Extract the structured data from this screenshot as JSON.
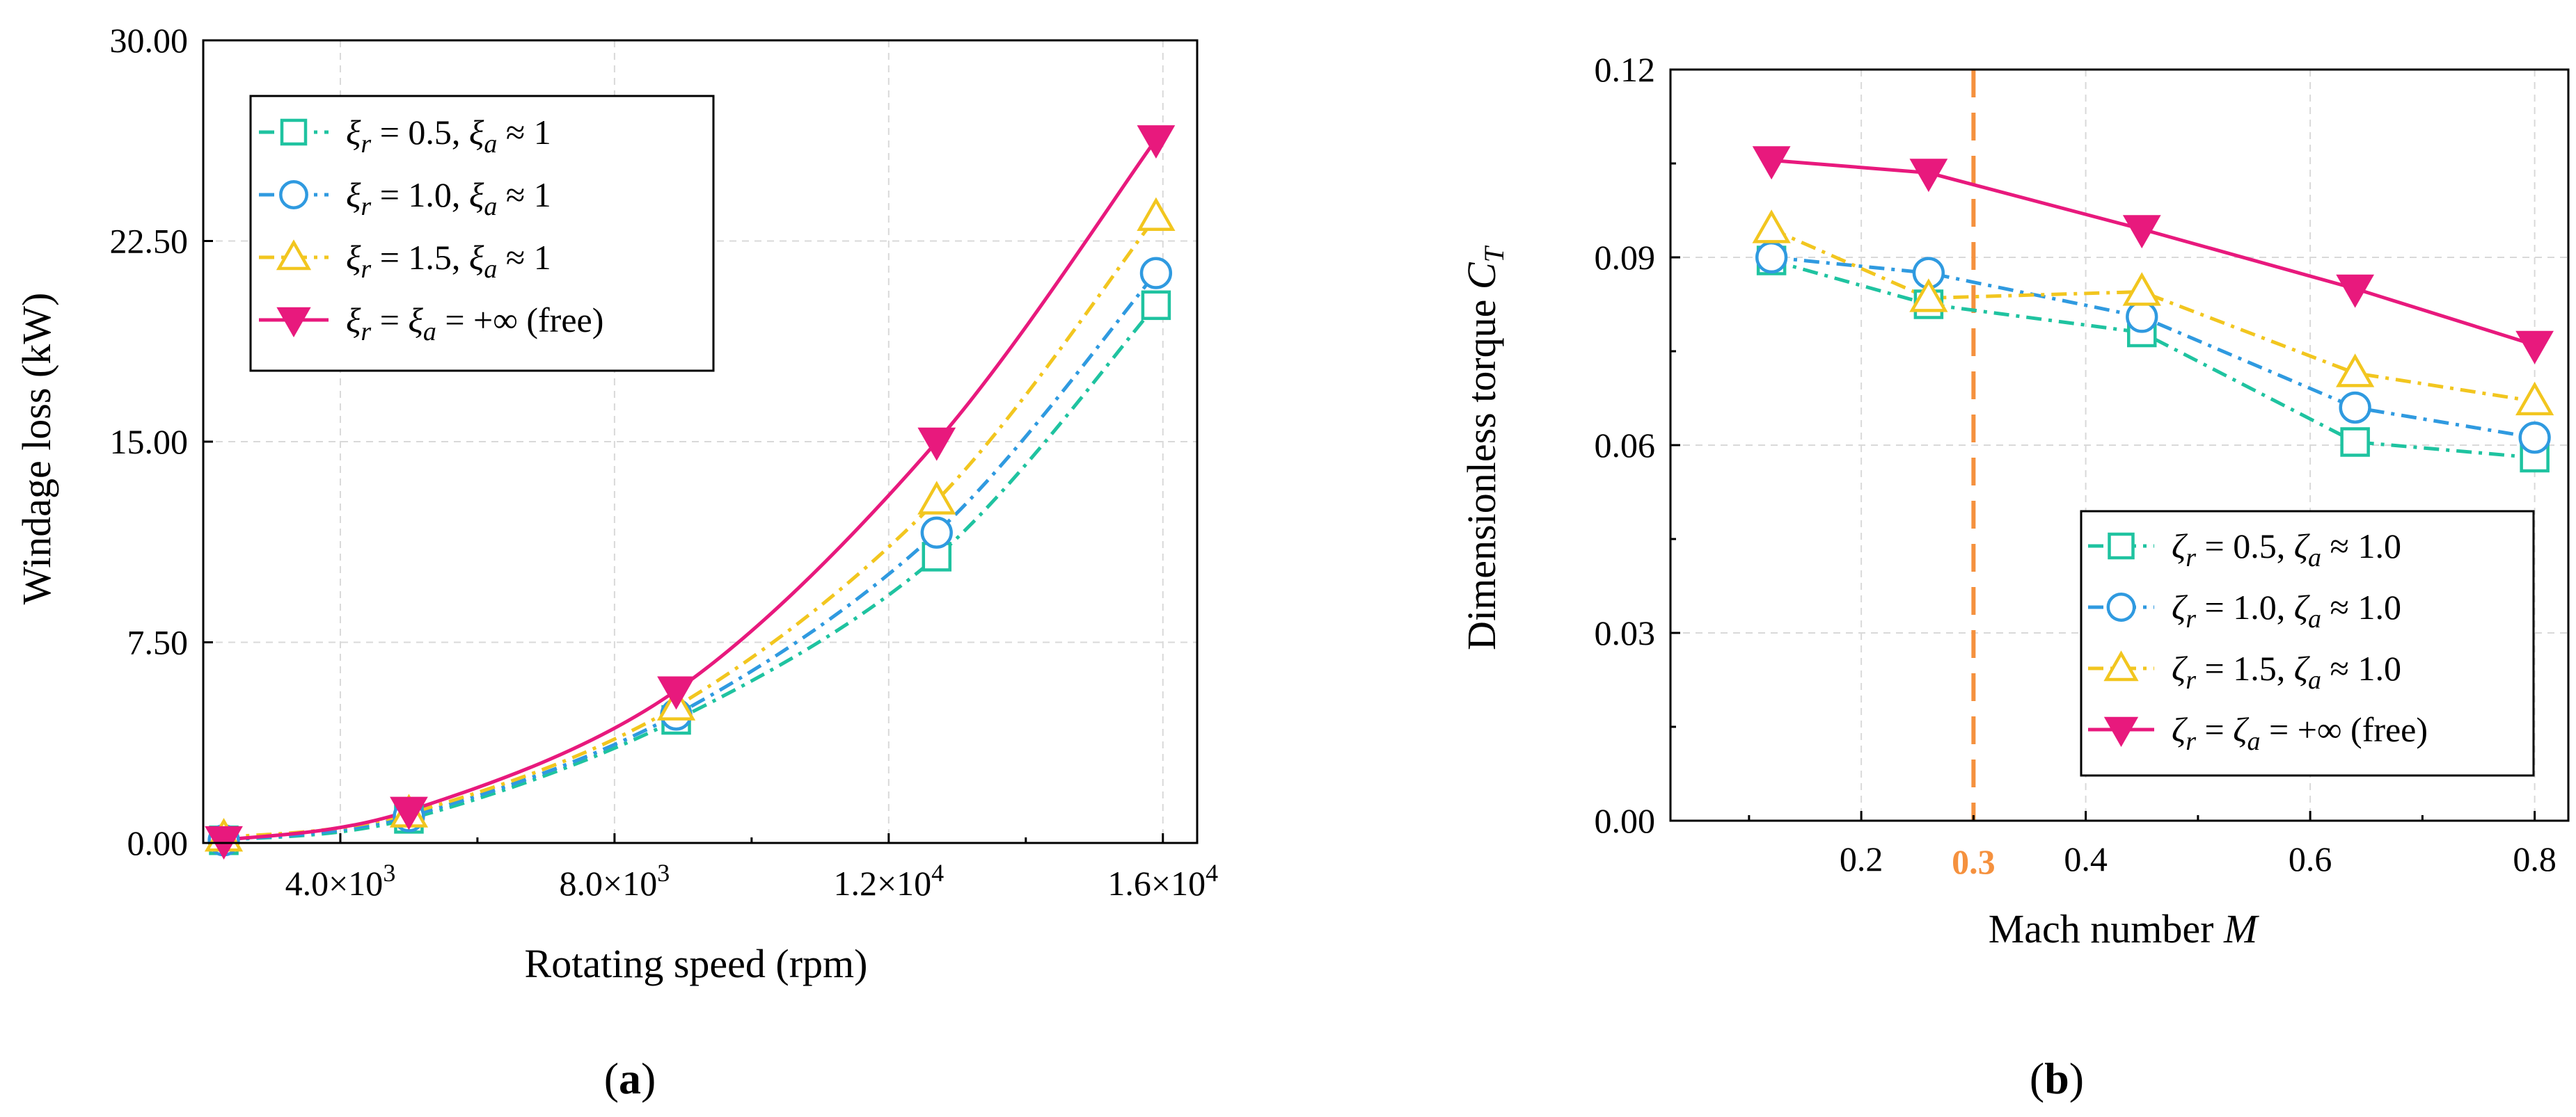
{
  "chart_data": [
    {
      "type": "line",
      "caption": "(a)",
      "xlabel": "Rotating speed (rpm)",
      "ylabel": "Windage loss (kW)",
      "xlim": [
        2000,
        16500
      ],
      "ylim": [
        0,
        30
      ],
      "xticks": [
        {
          "value": 4000,
          "mant": "4.0×10",
          "exp": "3"
        },
        {
          "value": 8000,
          "mant": "8.0×10",
          "exp": "3"
        },
        {
          "value": 12000,
          "mant": "1.2×10",
          "exp": "4"
        },
        {
          "value": 16000,
          "mant": "1.6×10",
          "exp": "4"
        }
      ],
      "yticks": [
        {
          "value": 0,
          "label": "0.00"
        },
        {
          "value": 7.5,
          "label": "7.50"
        },
        {
          "value": 15,
          "label": "15.00"
        },
        {
          "value": 22.5,
          "label": "22.50"
        },
        {
          "value": 30,
          "label": "30.00"
        }
      ],
      "legend_position": "top-left",
      "series": [
        {
          "name": "ξr = 0.5, ξa ≈ 1",
          "sym": "ξ",
          "r_value": "0.5",
          "a_value": "≈ 1",
          "marker": "square",
          "color": "#1fc3a0",
          "dash": "dashdot",
          "x": [
            2300,
            5000,
            8900,
            12700,
            15900
          ],
          "y": [
            0.1,
            0.9,
            4.6,
            10.7,
            20.1
          ]
        },
        {
          "name": "ξr = 1.0, ξa ≈ 1",
          "sym": "ξ",
          "r_value": "1.0",
          "a_value": "≈ 1",
          "marker": "circle",
          "color": "#2f9ae0",
          "dash": "dashdot",
          "x": [
            2300,
            5000,
            8900,
            12700,
            15900
          ],
          "y": [
            0.1,
            1.0,
            4.8,
            11.6,
            21.3
          ]
        },
        {
          "name": "ξr = 1.5, ξa ≈ 1",
          "sym": "ξ",
          "r_value": "1.5",
          "a_value": "≈ 1",
          "marker": "triangle",
          "color": "#f2c61f",
          "dash": "dashdot",
          "x": [
            2300,
            5000,
            8900,
            12700,
            15900
          ],
          "y": [
            0.2,
            1.1,
            5.1,
            12.8,
            23.4
          ]
        },
        {
          "name": "ξr = ξa = +∞ (free)",
          "sym": "ξ",
          "r_value": "",
          "a_value": "= +∞ (free)",
          "equal": true,
          "marker": "triangle-down",
          "color": "#e8197d",
          "dash": "solid",
          "x": [
            2300,
            5000,
            8900,
            12700,
            15900
          ],
          "y": [
            0.1,
            1.2,
            5.7,
            15.0,
            26.3
          ]
        }
      ]
    },
    {
      "type": "line",
      "caption": "(b)",
      "xlabel": "Mach number",
      "xlabel_var": "M",
      "ylabel": "Dimensionless torque",
      "ylabel_var": "C",
      "ylabel_sub": "T",
      "xlim": [
        0.03,
        0.83
      ],
      "ylim": [
        0,
        0.12
      ],
      "xticks": [
        {
          "value": 0.2,
          "label": "0.2"
        },
        {
          "value": 0.4,
          "label": "0.4"
        },
        {
          "value": 0.6,
          "label": "0.6"
        },
        {
          "value": 0.8,
          "label": "0.8"
        }
      ],
      "xminor": [
        0.1,
        0.3,
        0.5,
        0.7
      ],
      "yticks": [
        {
          "value": 0,
          "label": "0.00"
        },
        {
          "value": 0.03,
          "label": "0.03"
        },
        {
          "value": 0.06,
          "label": "0.06"
        },
        {
          "value": 0.09,
          "label": "0.09"
        },
        {
          "value": 0.12,
          "label": "0.12"
        }
      ],
      "annotation": {
        "value": 0.3,
        "label": "0.3",
        "color": "#f5913e"
      },
      "legend_position": "bottom-right",
      "series": [
        {
          "name": "ζr = 0.5, ζa ≈ 1.0",
          "sym": "ζ",
          "r_value": "0.5",
          "a_value": "≈ 1.0",
          "marker": "square",
          "color": "#1fc3a0",
          "dash": "dashdot",
          "x": [
            0.12,
            0.26,
            0.45,
            0.64,
            0.8
          ],
          "y": [
            0.0895,
            0.0825,
            0.078,
            0.0605,
            0.058
          ]
        },
        {
          "name": "ζr = 1.0, ζa ≈ 1.0",
          "sym": "ζ",
          "r_value": "1.0",
          "a_value": "≈ 1.0",
          "marker": "circle",
          "color": "#2f9ae0",
          "dash": "dashdot",
          "x": [
            0.12,
            0.26,
            0.45,
            0.64,
            0.8
          ],
          "y": [
            0.09,
            0.0875,
            0.0805,
            0.066,
            0.0612
          ]
        },
        {
          "name": "ζr = 1.5, ζa ≈ 1.0",
          "sym": "ζ",
          "r_value": "1.5",
          "a_value": "≈ 1.0",
          "marker": "triangle",
          "color": "#f2c61f",
          "dash": "dashdot",
          "x": [
            0.12,
            0.26,
            0.45,
            0.64,
            0.8
          ],
          "y": [
            0.0945,
            0.0835,
            0.0845,
            0.0715,
            0.067
          ]
        },
        {
          "name": "ζr = ζa = +∞ (free)",
          "sym": "ζ",
          "r_value": "",
          "a_value": "= +∞ (free)",
          "equal": true,
          "marker": "triangle-down",
          "color": "#e8197d",
          "dash": "solid",
          "x": [
            0.12,
            0.26,
            0.45,
            0.64,
            0.8
          ],
          "y": [
            0.1055,
            0.1035,
            0.0945,
            0.085,
            0.076
          ]
        }
      ]
    }
  ]
}
